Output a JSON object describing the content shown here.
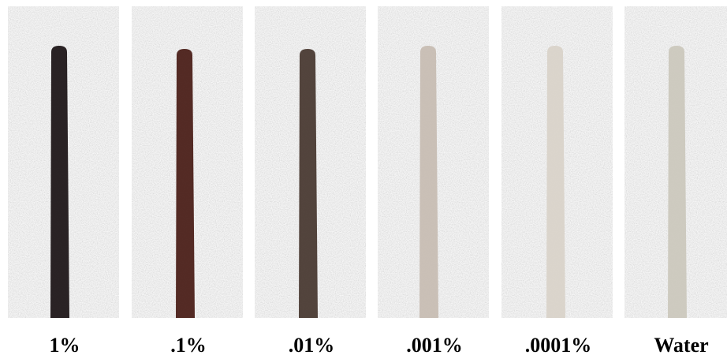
{
  "panels": [
    {
      "label": "1%",
      "color": "#1f1719"
    },
    {
      "label": ".1%",
      "color": "#4b2019"
    },
    {
      "label": ".01%",
      "color": "#4a3a33"
    },
    {
      "label": ".001%",
      "color": "#c7bdb3"
    },
    {
      "label": ".0001%",
      "color": "#d9d3c9"
    },
    {
      "label": "Water",
      "color": "#cbc8bd"
    }
  ]
}
